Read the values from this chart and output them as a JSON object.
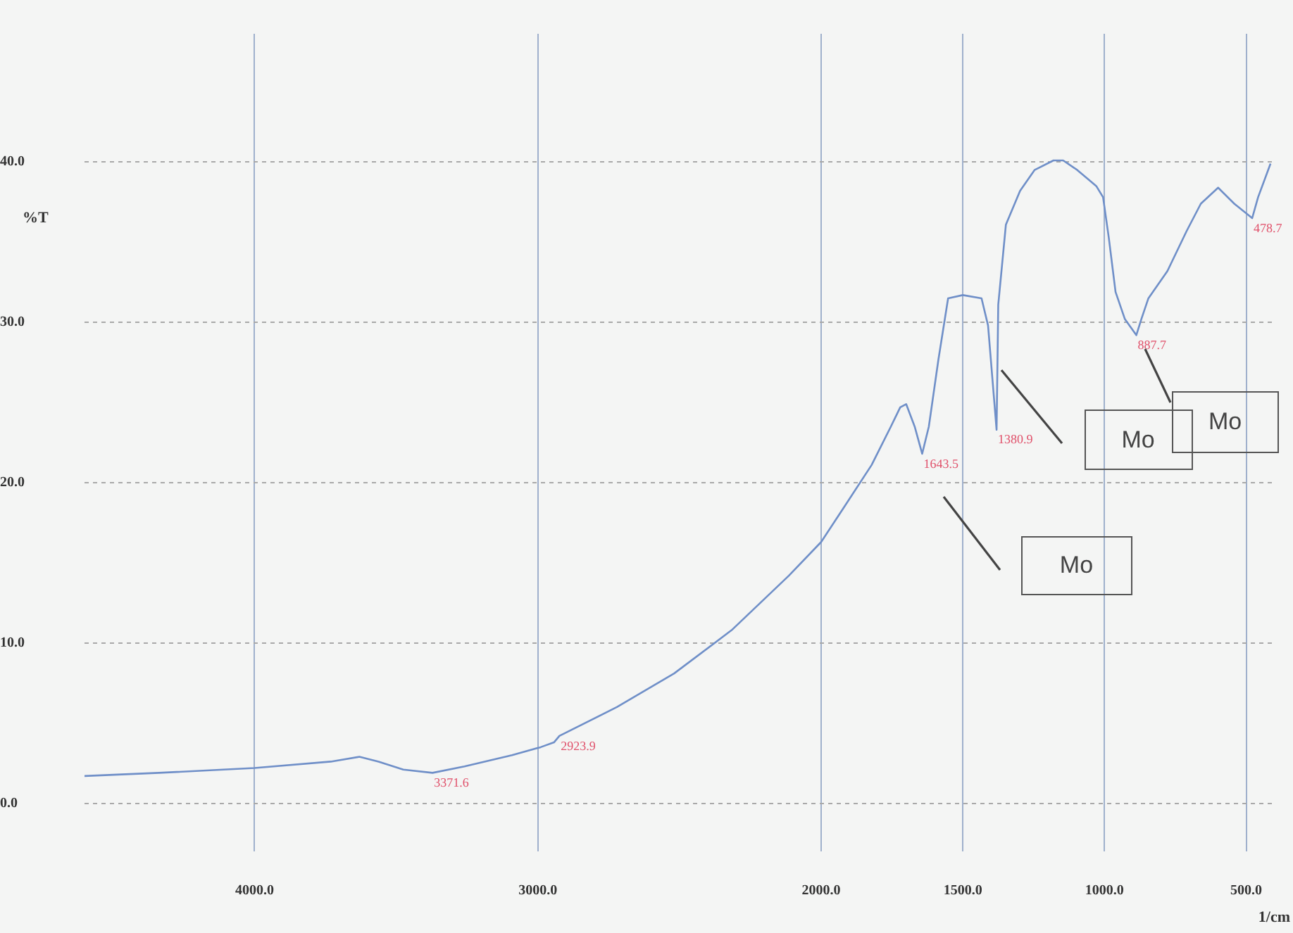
{
  "chart_data": {
    "type": "line",
    "xlabel": "1/cm",
    "ylabel": "%T",
    "x": [
      4600,
      4337,
      4000,
      3731,
      3630,
      3562,
      3475,
      3371.6,
      3259,
      3091,
      2990,
      2943,
      2923.9,
      2721,
      2519,
      2316,
      2114,
      2000,
      1922,
      1822,
      1754,
      1721,
      1700,
      1670,
      1643.5,
      1620,
      1586,
      1552,
      1500,
      1434,
      1411,
      1380.9,
      1375,
      1348,
      1298,
      1247,
      1180,
      1146,
      1096,
      1029,
      1005,
      985,
      961,
      928,
      887.7,
      870,
      845,
      778,
      710,
      660,
      599,
      542,
      478.7,
      458,
      414
    ],
    "series": [
      {
        "color": "#6f8fc8",
        "values": [
          1.7,
          1.9,
          2.2,
          2.6,
          2.9,
          2.6,
          2.1,
          1.9,
          2.3,
          3.0,
          3.5,
          3.8,
          4.2,
          6.0,
          8.1,
          10.8,
          14.2,
          16.3,
          18.4,
          21.1,
          23.5,
          24.7,
          24.9,
          23.5,
          21.8,
          23.5,
          27.7,
          31.5,
          31.7,
          31.5,
          29.8,
          23.3,
          31.1,
          36.1,
          38.2,
          39.5,
          40.1,
          40.1,
          39.5,
          38.5,
          37.8,
          35.3,
          31.9,
          30.2,
          29.2,
          30.2,
          31.5,
          33.2,
          35.7,
          37.4,
          38.4,
          37.4,
          36.5,
          37.8,
          39.9
        ]
      }
    ],
    "xlim": [
      4600,
      400
    ],
    "xticks": [
      {
        "value": 4000,
        "label": "4000.0"
      },
      {
        "value": 3000,
        "label": "3000.0"
      },
      {
        "value": 2000,
        "label": "2000.0"
      },
      {
        "value": 1500,
        "label": "1500.0"
      },
      {
        "value": 1000,
        "label": "1000.0"
      },
      {
        "value": 500,
        "label": "500.0"
      }
    ],
    "ylim": [
      -3,
      48
    ],
    "yticks": [
      {
        "value": 0,
        "label": "0.0"
      },
      {
        "value": 10,
        "label": "10.0"
      },
      {
        "value": 20,
        "label": "20.0"
      },
      {
        "value": 30,
        "label": "30.0"
      },
      {
        "value": 40,
        "label": "40.0"
      }
    ],
    "grid": true,
    "annotations": [
      {
        "text": "3371.6",
        "x": 3371.6,
        "y": 1.9
      },
      {
        "text": "2923.9",
        "x": 2923.9,
        "y": 4.2
      },
      {
        "text": "1643.5",
        "x": 1643.5,
        "y": 21.8
      },
      {
        "text": "1380.9",
        "x": 1380.9,
        "y": 23.3
      },
      {
        "text": "887.7",
        "x": 887.7,
        "y": 29.2
      },
      {
        "text": "478.7",
        "x": 478.7,
        "y": 36.5
      },
      "Mo",
      "Mo",
      "Mo"
    ]
  }
}
